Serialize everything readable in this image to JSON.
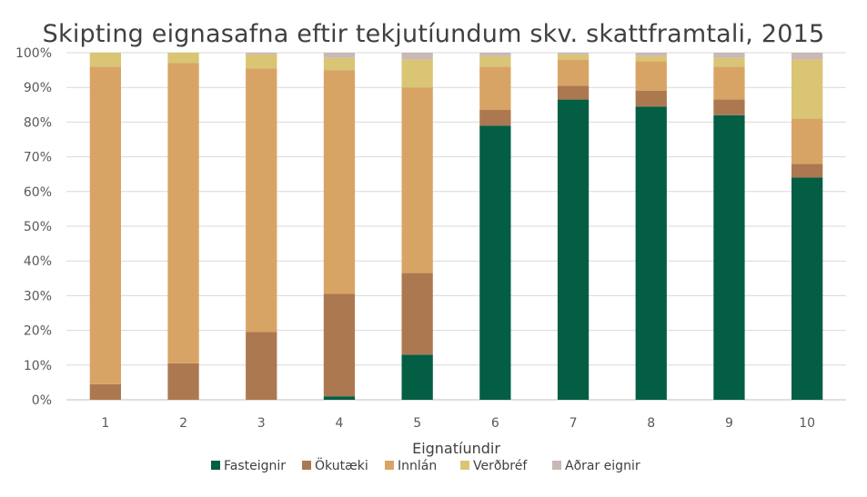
{
  "chart_data": {
    "type": "bar",
    "stacked": true,
    "title": "Skipting eignasafna eftir tekjutíundum skv. skattframtali, 2015",
    "xlabel": "Eignatíundir",
    "ylabel": "",
    "categories": [
      "1",
      "2",
      "3",
      "4",
      "5",
      "6",
      "7",
      "8",
      "9",
      "10"
    ],
    "ylim": [
      0,
      100
    ],
    "yticks": [
      "0%",
      "10%",
      "20%",
      "30%",
      "40%",
      "50%",
      "60%",
      "70%",
      "80%",
      "90%",
      "100%"
    ],
    "grid": true,
    "legend_position": "bottom",
    "series": [
      {
        "name": "Fasteignir",
        "color": "#035e44",
        "values": [
          0,
          0,
          0,
          1,
          13,
          79,
          86.5,
          84.5,
          82,
          64
        ]
      },
      {
        "name": "Ökutæki",
        "color": "#ac7850",
        "values": [
          4.5,
          10.5,
          19.5,
          29.5,
          23.5,
          4.5,
          4,
          4.5,
          4.5,
          4
        ]
      },
      {
        "name": "Innlán",
        "color": "#d8a465",
        "values": [
          91.5,
          86.5,
          76,
          64.5,
          53.5,
          12.5,
          7.5,
          8.5,
          9.5,
          13
        ]
      },
      {
        "name": "Verðbréf",
        "color": "#d9c574",
        "values": [
          4,
          3,
          4,
          3.5,
          8,
          3,
          1.5,
          1.5,
          2.5,
          17
        ]
      },
      {
        "name": "Aðrar eignir",
        "color": "#c9b8b5",
        "values": [
          0,
          0,
          0.5,
          1.5,
          2,
          1,
          0.5,
          1,
          1.5,
          2
        ]
      }
    ]
  }
}
